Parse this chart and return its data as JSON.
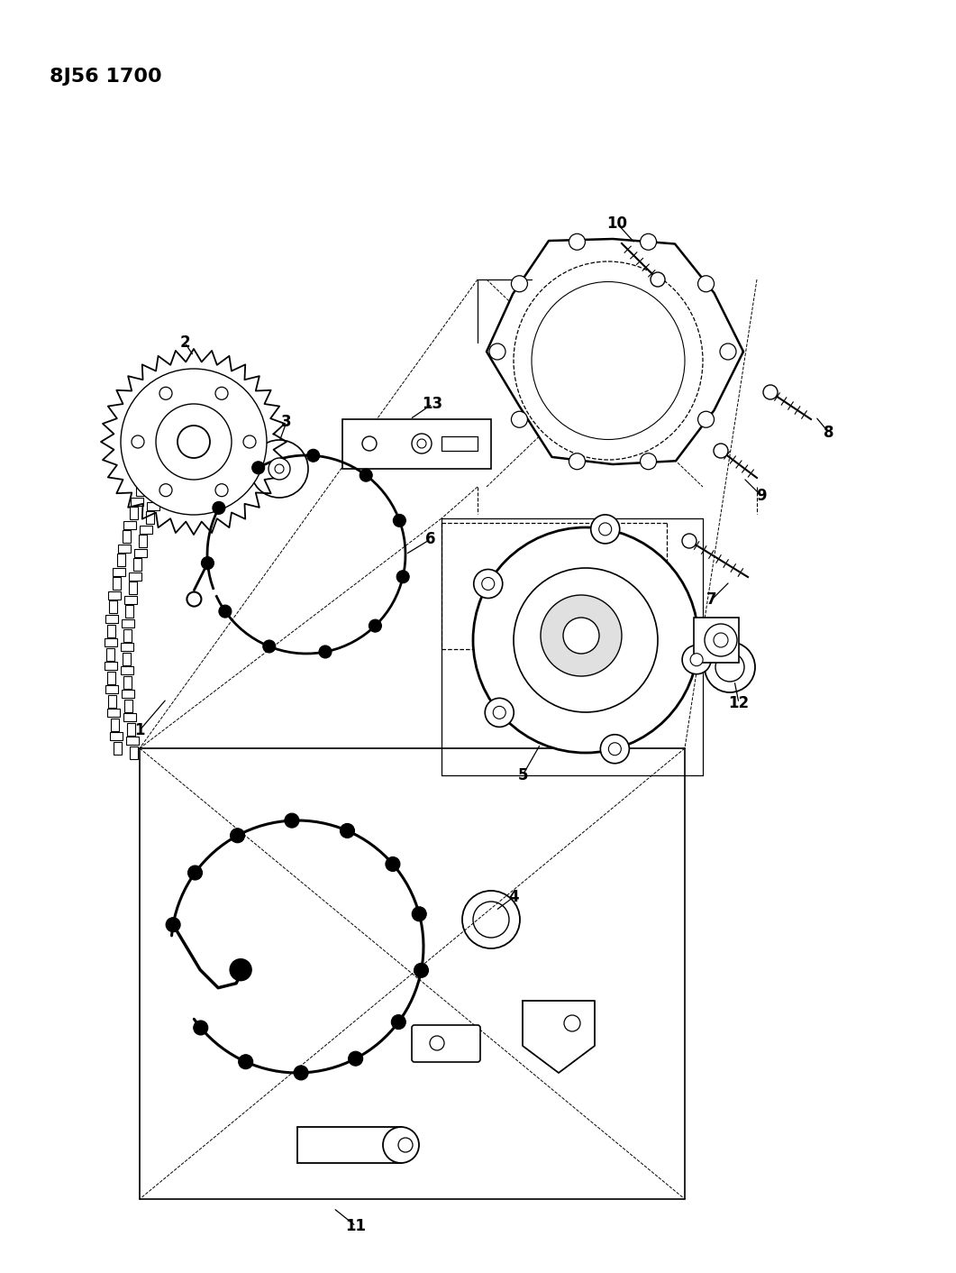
{
  "title": "8J56 1700",
  "bg_color": "#ffffff",
  "line_color": "#000000",
  "title_fontsize": 16,
  "label_fontsize": 12,
  "fig_width": 10.61,
  "fig_height": 14.12
}
